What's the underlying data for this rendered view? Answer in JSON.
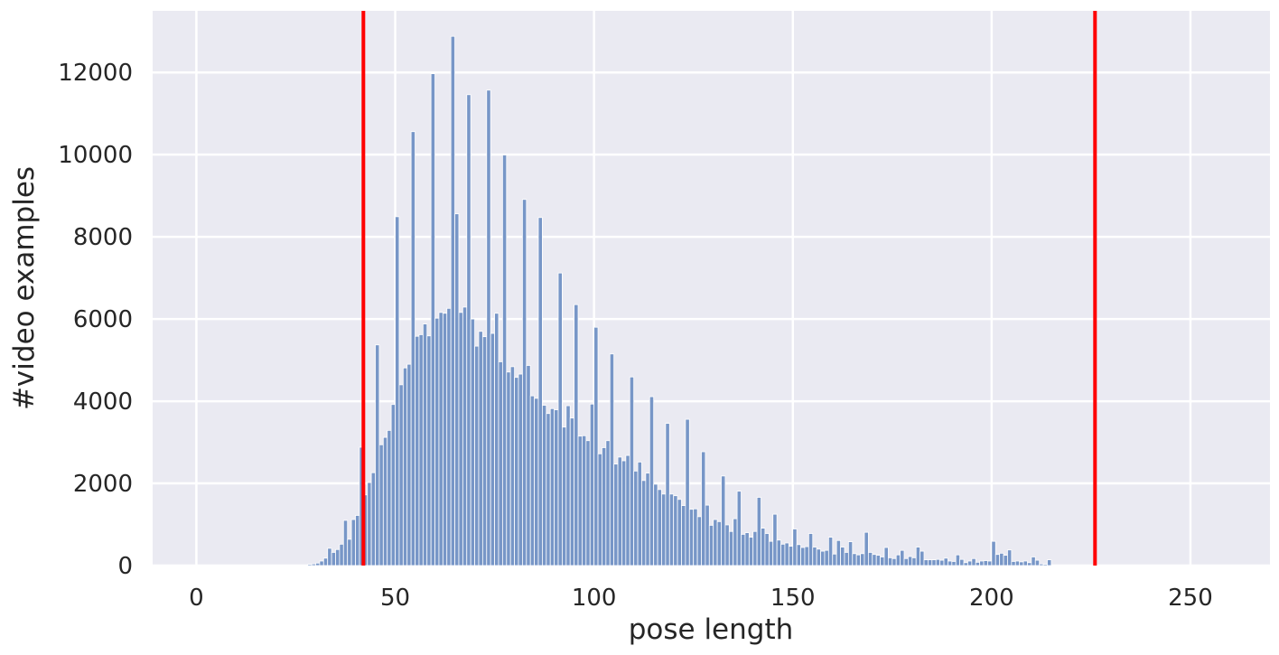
{
  "chart_data": {
    "type": "bar",
    "title": "",
    "xlabel": "pose length",
    "ylabel": "#video examples",
    "xlim": [
      -11,
      270
    ],
    "ylim": [
      0,
      13500
    ],
    "xticks": [
      0,
      50,
      100,
      150,
      200,
      250
    ],
    "yticks": [
      0,
      2000,
      4000,
      6000,
      8000,
      10000,
      12000
    ],
    "grid": true,
    "background": "#eaeaf2",
    "bar_color": "#7796c7",
    "reference_lines": [
      {
        "x": 42,
        "color": "#ff0000"
      },
      {
        "x": 226,
        "color": "#ff0000"
      }
    ],
    "bins": {
      "start": 28,
      "width": 1,
      "values": [
        30,
        40,
        60,
        110,
        180,
        420,
        320,
        390,
        520,
        1100,
        640,
        1120,
        1220,
        2880,
        1720,
        2020,
        2260,
        5370,
        2940,
        3120,
        3290,
        3920,
        8490,
        4400,
        4810,
        4900,
        10560,
        5580,
        5620,
        5880,
        5590,
        11970,
        6020,
        6160,
        6140,
        6260,
        12880,
        8560,
        6160,
        6290,
        11460,
        6000,
        5340,
        5700,
        5570,
        11570,
        5650,
        6140,
        4960,
        9990,
        4710,
        4840,
        4580,
        4660,
        8910,
        4870,
        4130,
        4070,
        8470,
        3900,
        3700,
        3820,
        3790,
        7120,
        3370,
        3890,
        3590,
        6350,
        3150,
        3160,
        3040,
        3930,
        5800,
        2720,
        2870,
        3040,
        5150,
        2470,
        2640,
        2550,
        2680,
        4590,
        2300,
        2520,
        2070,
        2250,
        4110,
        1980,
        1850,
        1740,
        3460,
        1740,
        1700,
        1610,
        1460,
        3560,
        1370,
        1380,
        1190,
        2770,
        1470,
        980,
        1120,
        1070,
        2180,
        990,
        830,
        1140,
        1810,
        760,
        800,
        690,
        830,
        1660,
        910,
        780,
        590,
        1250,
        620,
        520,
        550,
        470,
        890,
        510,
        440,
        460,
        780,
        450,
        400,
        350,
        370,
        690,
        280,
        610,
        450,
        320,
        580,
        290,
        260,
        290,
        810,
        320,
        270,
        250,
        210,
        440,
        190,
        170,
        260,
        370,
        170,
        220,
        190,
        450,
        350,
        140,
        140,
        140,
        150,
        130,
        180,
        110,
        100,
        260,
        150,
        70,
        110,
        170,
        80,
        110,
        120,
        110,
        590,
        270,
        300,
        250,
        380,
        100,
        110,
        90,
        110,
        70,
        210,
        130,
        40,
        30,
        140
      ]
    }
  }
}
